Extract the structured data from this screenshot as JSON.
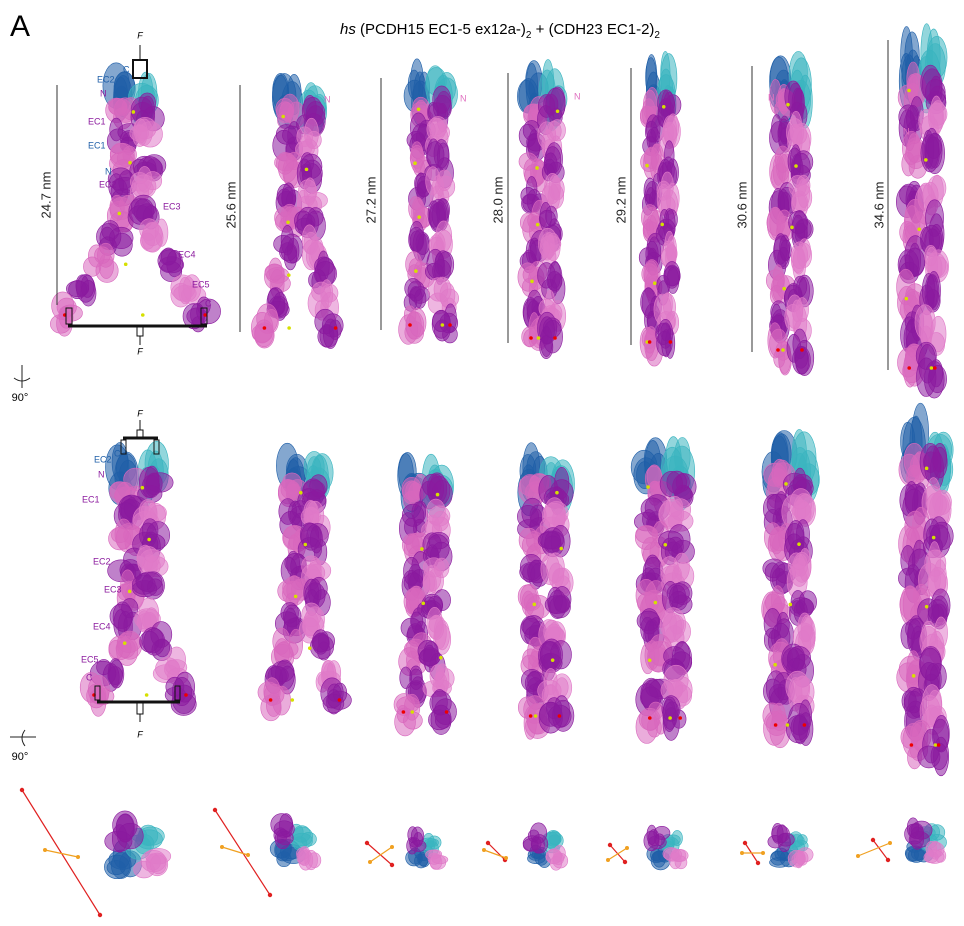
{
  "panel_label": "A",
  "title": {
    "species": "hs",
    "part1": " (PCDH15 EC1-5 ex12a-)",
    "sub1": "2",
    "part2": " + (CDH23 EC1-2)",
    "sub2": "2"
  },
  "top_row": {
    "lengths": [
      "24.7 nm",
      "25.6 nm",
      "27.2 nm",
      "28.0 nm",
      "29.2 nm",
      "30.6 nm",
      "34.6 nm"
    ],
    "domain_labels": [
      "F",
      "EC2",
      "C",
      "N",
      "EC1",
      "EC1",
      "N",
      "EC2",
      "EC3",
      "EC4",
      "EC5",
      "C",
      "F"
    ],
    "n_labels": [
      "N",
      "N",
      "N",
      "N",
      "N"
    ]
  },
  "middle_row": {
    "domain_labels": [
      "F",
      "EC2",
      "C",
      "N",
      "EC1",
      "EC2",
      "EC3",
      "EC4",
      "EC5",
      "C",
      "F"
    ]
  },
  "rotations": [
    "90°",
    "90°"
  ]
}
